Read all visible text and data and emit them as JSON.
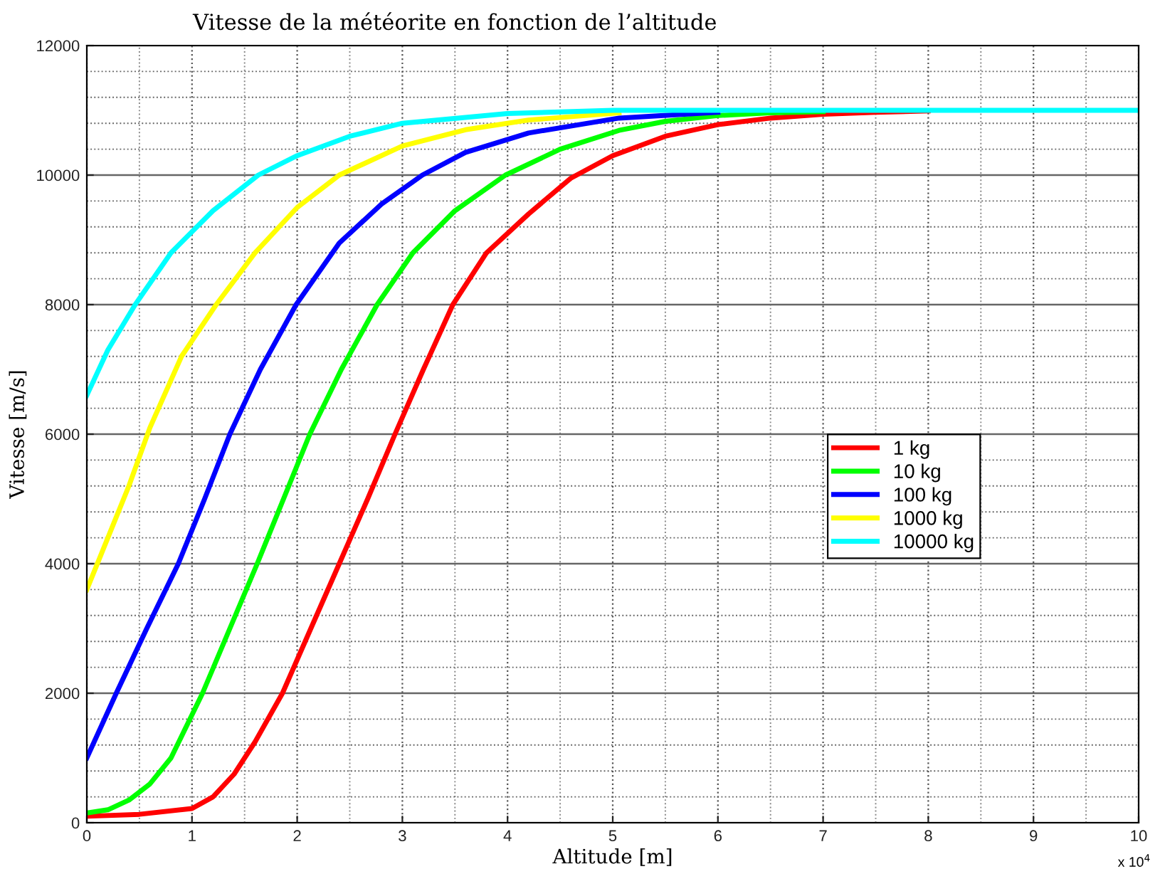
{
  "chart_data": {
    "type": "line",
    "title": "Vitesse de la météorite en fonction de l’altitude",
    "xlabel": "Altitude [m]",
    "ylabel": "Vitesse [m/s]",
    "annotations": [
      "x 10$^{4}$"
    ],
    "xlim": [
      0,
      10
    ],
    "xticks": [
      0,
      1,
      2,
      3,
      4,
      5,
      6,
      7,
      8,
      9,
      10
    ],
    "ylim": [
      0,
      12000
    ],
    "yticks": [
      0,
      2000,
      4000,
      6000,
      8000,
      10000,
      12000
    ],
    "grid": true,
    "legend": "right",
    "marker": "none",
    "line_style": "solid",
    "series": [
      {
        "name": "1 kg",
        "color": "#ff0000",
        "x": [
          0,
          0.5,
          1.0,
          1.2,
          1.4,
          1.6,
          1.86,
          2.13,
          2.4,
          2.67,
          2.93,
          3.2,
          3.48,
          3.8,
          4.2,
          4.6,
          5.0,
          5.5,
          6,
          6.5,
          7,
          7.5,
          8
        ],
        "values": [
          100,
          130,
          220,
          400,
          750,
          1250,
          2000,
          3000,
          4000,
          5000,
          6000,
          7000,
          8000,
          8800,
          9400,
          9950,
          10300,
          10600,
          10780,
          10880,
          10940,
          10970,
          10990
        ]
      },
      {
        "name": "10 kg",
        "color": "#00ff00",
        "x": [
          0,
          0.2,
          0.4,
          0.6,
          0.8,
          1.1,
          1.36,
          1.62,
          1.87,
          2.12,
          2.42,
          2.76,
          3.1,
          3.5,
          3.98,
          4.5,
          5.06,
          5.5,
          6,
          6.5,
          7
        ],
        "values": [
          150,
          200,
          350,
          600,
          1000,
          2000,
          3000,
          4000,
          5000,
          6000,
          7000,
          8000,
          8800,
          9450,
          10000,
          10400,
          10690,
          10830,
          10920,
          10960,
          10980
        ]
      },
      {
        "name": "100 kg",
        "color": "#0000ff",
        "x": [
          0,
          0.28,
          0.57,
          0.87,
          1.12,
          1.36,
          1.65,
          1.99,
          2.4,
          2.8,
          3.19,
          3.6,
          4.2,
          5.06,
          6
        ],
        "values": [
          1000,
          2000,
          3000,
          4000,
          5000,
          6000,
          7000,
          8000,
          8950,
          9550,
          10000,
          10350,
          10650,
          10880,
          10970
        ]
      },
      {
        "name": "1000 kg",
        "color": "#ffff00",
        "x": [
          0,
          0.2,
          0.4,
          0.6,
          0.9,
          1.23,
          1.6,
          2.0,
          2.4,
          3.0,
          3.6,
          4.2,
          5.06
        ],
        "values": [
          3600,
          4400,
          5200,
          6100,
          7200,
          8000,
          8800,
          9500,
          10000,
          10450,
          10700,
          10850,
          10960
        ]
      },
      {
        "name": "10000 kg",
        "color": "#00ffff",
        "x": [
          0,
          0.2,
          0.46,
          0.8,
          1.2,
          1.63,
          2.0,
          2.5,
          3,
          4,
          5,
          10
        ],
        "values": [
          6600,
          7300,
          8000,
          8800,
          9450,
          10000,
          10300,
          10600,
          10800,
          10950,
          11000,
          11000
        ]
      }
    ]
  }
}
